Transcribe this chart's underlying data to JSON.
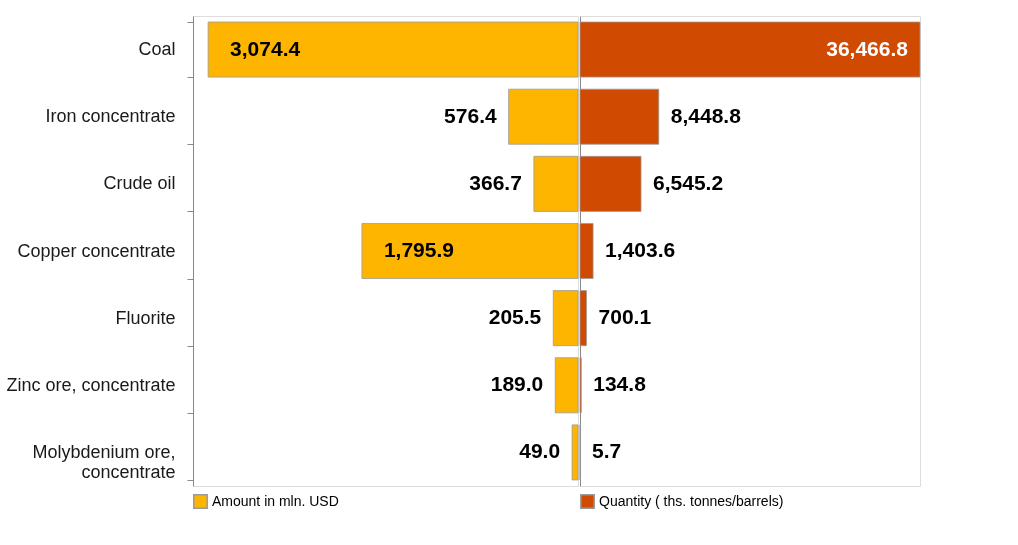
{
  "chart_data": [
    {
      "type": "bar",
      "orientation": "horizontal",
      "categories": [
        "Coal",
        "Iron concentrate",
        "Crude oil",
        "Copper concentrate",
        "Fluorite",
        "Zinc ore, concentrate",
        "Molybdenium ore, concentrate"
      ],
      "series": [
        {
          "name": "Amount in mln. USD",
          "color": "#fdb500",
          "values": [
            3074.4,
            576.4,
            366.7,
            1795.9,
            205.5,
            189.0,
            49.0
          ],
          "value_labels": [
            "3,074.4",
            "576.4",
            "366.7",
            "1,795.9",
            "205.5",
            "189.0",
            "49.0"
          ]
        }
      ],
      "xlim": [
        3200,
        0
      ],
      "legend": "bottom",
      "tick_labels": "y",
      "grid": false
    },
    {
      "type": "bar",
      "orientation": "horizontal",
      "categories": [
        null,
        null,
        null,
        null,
        null,
        null,
        null
      ],
      "series": [
        {
          "name": "Quantity ( ths. tonnes/barrels)",
          "color": "#d04a02",
          "values": [
            36466.8,
            8448.8,
            6545.2,
            1403.6,
            700.1,
            134.8,
            5.7
          ],
          "value_labels": [
            "36,466.8",
            "8,448.8",
            "6,545.2",
            "1,403.6",
            "700.1",
            "134.8",
            "5.7"
          ]
        }
      ],
      "xlim": [
        0,
        36466.8
      ],
      "legend": "bottom",
      "tick_labels": false,
      "grid": false
    }
  ]
}
